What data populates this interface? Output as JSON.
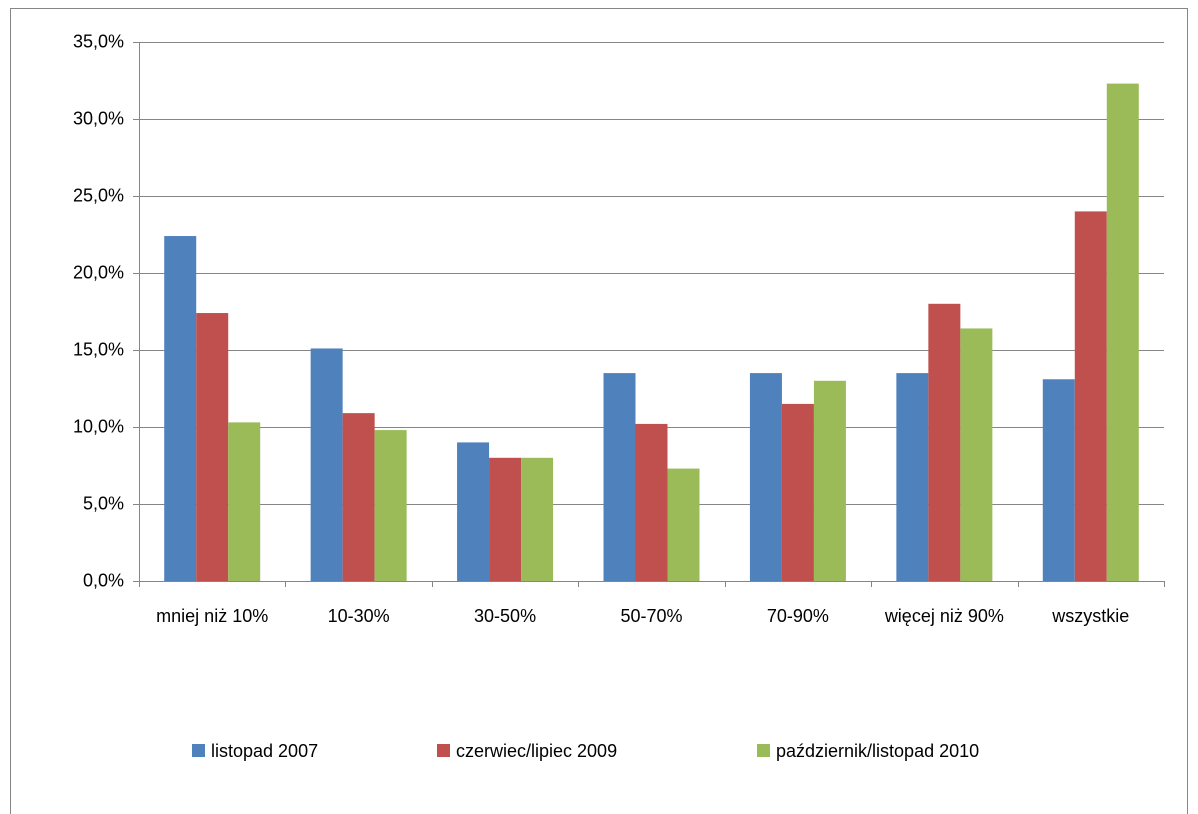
{
  "chart_data": {
    "type": "bar",
    "categories": [
      "mniej niż 10%",
      "10-30%",
      "30-50%",
      "50-70%",
      "70-90%",
      "więcej niż 90%",
      "wszystkie"
    ],
    "series": [
      {
        "name": "listopad 2007",
        "color": "#4f81bd",
        "values": [
          22.4,
          15.1,
          9.0,
          13.5,
          13.5,
          13.5,
          13.1
        ]
      },
      {
        "name": "czerwiec/lipiec 2009",
        "color": "#c0504d",
        "values": [
          17.4,
          10.9,
          8.0,
          10.2,
          11.5,
          18.0,
          24.0
        ]
      },
      {
        "name": "październik/listopad 2010",
        "color": "#9bbb59",
        "values": [
          10.3,
          9.8,
          8.0,
          7.3,
          13.0,
          16.4,
          32.3
        ]
      }
    ],
    "ylim": [
      0,
      35
    ],
    "yticks": [
      {
        "value": 0,
        "label": "0,0%"
      },
      {
        "value": 5,
        "label": "5,0%"
      },
      {
        "value": 10,
        "label": "10,0%"
      },
      {
        "value": 15,
        "label": "15,0%"
      },
      {
        "value": 20,
        "label": "20,0%"
      },
      {
        "value": 25,
        "label": "25,0%"
      },
      {
        "value": 30,
        "label": "30,0%"
      },
      {
        "value": 35,
        "label": "35,0%"
      }
    ],
    "grid": true,
    "legend": "bottom"
  }
}
